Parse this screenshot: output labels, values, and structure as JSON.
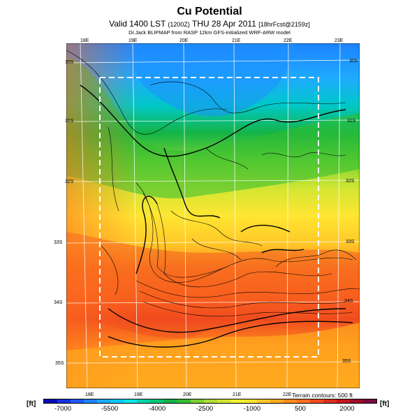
{
  "header": {
    "title": "Cu Potential",
    "subtitle_main": "Valid 1400 LST",
    "subtitle_code": "(1200Z)",
    "subtitle_date": "THU 28 Apr 2011",
    "subtitle_forecast": "[18hrFcst@2159z]",
    "credit": "Dr.Jack BLIPMAP from RASP 12km GFS-initialized WRF-ARW model"
  },
  "map": {
    "lon_labels_top": [
      "18E",
      "19E",
      "20E",
      "21E",
      "22E",
      "23E"
    ],
    "lon_labels_bottom": [
      "18E",
      "19E",
      "20E",
      "21E",
      "22E"
    ],
    "lat_labels_left": [
      "30S",
      "31S",
      "32S",
      "33S",
      "34S",
      "35S"
    ],
    "lat_labels_right": [
      "30S",
      "31S",
      "32S",
      "33S",
      "34S",
      "35S"
    ],
    "terrain_note": "Terrain contours: 500 ft"
  },
  "legend": {
    "unit_left": "[ft]",
    "unit_right": "[ft]",
    "ticks": [
      "-7000",
      "-5500",
      "-4000",
      "-2500",
      "-1000",
      "500",
      "2000"
    ],
    "colors": [
      "#0a0ab4",
      "#1432dc",
      "#1e5aff",
      "#1e82ff",
      "#1eaaff",
      "#00c8ff",
      "#00e6e6",
      "#00d2aa",
      "#00c878",
      "#14b446",
      "#32be32",
      "#78d232",
      "#aadc32",
      "#d2e632",
      "#f0f032",
      "#ffe632",
      "#ffc828",
      "#ffaa1e",
      "#ff8c1e",
      "#ff6e1e",
      "#f04b1e",
      "#dc2d1e",
      "#c8141e",
      "#a00a28",
      "#780a3c"
    ]
  }
}
